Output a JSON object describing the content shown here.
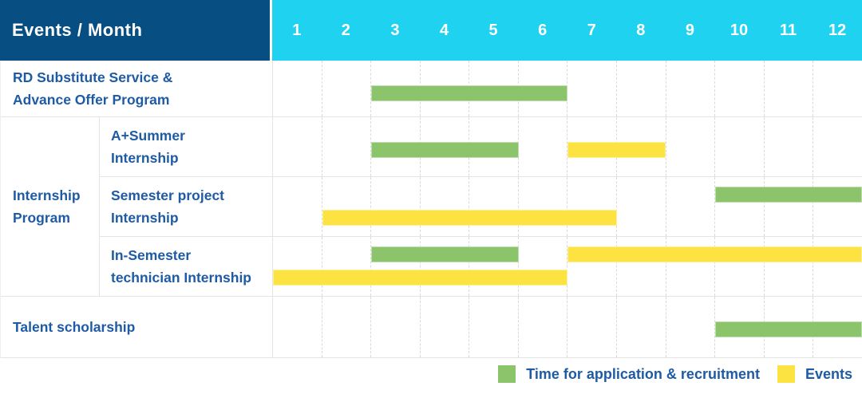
{
  "title_cell": "Events / Month",
  "months": [
    "1",
    "2",
    "3",
    "4",
    "5",
    "6",
    "7",
    "8",
    "9",
    "10",
    "11",
    "12"
  ],
  "labels": {
    "rd": [
      "RD Substitute Service &",
      "Advance Offer Program"
    ],
    "group": [
      "Internship",
      "Program"
    ],
    "a_summer": [
      "A+Summer",
      "Internship"
    ],
    "semester_project": [
      "Semester project",
      "Internship"
    ],
    "in_semester": [
      "In-Semester",
      "technician Internship"
    ],
    "talent": [
      "Talent scholarship"
    ]
  },
  "legend": {
    "application": "Time for application & recruitment",
    "events": "Events"
  },
  "colors": {
    "header_bg": "#074e82",
    "month_bg": "#1ed2f0",
    "green": "#8bc46b",
    "yellow": "#fde342",
    "label_text": "#1e5ba4"
  },
  "chart_data": {
    "type": "gantt",
    "title": "Events / Month",
    "x_axis": {
      "label": "Month",
      "ticks": [
        1,
        2,
        3,
        4,
        5,
        6,
        7,
        8,
        9,
        10,
        11,
        12
      ],
      "range": [
        1,
        12
      ],
      "grid": "dashed-vertical"
    },
    "legend_entries": [
      {
        "name": "Time for application & recruitment",
        "color": "#8bc46b"
      },
      {
        "name": "Events",
        "color": "#fde342"
      }
    ],
    "legend_position": "bottom-right",
    "rows": [
      {
        "label": "RD Substitute Service & Advance Offer Program",
        "group": null,
        "bars": [
          {
            "series": "Time for application & recruitment",
            "color": "#8bc46b",
            "start_month": 3,
            "end_month": 6,
            "band": "single"
          }
        ]
      },
      {
        "label": "A+Summer Internship",
        "group": "Internship Program",
        "bars": [
          {
            "series": "Time for application & recruitment",
            "color": "#8bc46b",
            "start_month": 3,
            "end_month": 5,
            "band": "single"
          },
          {
            "series": "Events",
            "color": "#fde342",
            "start_month": 7,
            "end_month": 8,
            "band": "single"
          }
        ]
      },
      {
        "label": "Semester project Internship",
        "group": "Internship Program",
        "bars": [
          {
            "series": "Time for application & recruitment",
            "color": "#8bc46b",
            "start_month": 10,
            "end_month": 12,
            "band": "top"
          },
          {
            "series": "Events",
            "color": "#fde342",
            "start_month": 2,
            "end_month": 7,
            "band": "bottom"
          }
        ]
      },
      {
        "label": "In-Semester technician Internship",
        "group": "Internship Program",
        "bars": [
          {
            "series": "Time for application & recruitment",
            "color": "#8bc46b",
            "start_month": 3,
            "end_month": 5,
            "band": "top"
          },
          {
            "series": "Events",
            "color": "#fde342",
            "start_month": 7,
            "end_month": 12,
            "band": "top"
          },
          {
            "series": "Events",
            "color": "#fde342",
            "start_month": 1,
            "end_month": 6,
            "band": "bottom"
          }
        ]
      },
      {
        "label": "Talent scholarship",
        "group": null,
        "bars": [
          {
            "series": "Time for application & recruitment",
            "color": "#8bc46b",
            "start_month": 10,
            "end_month": 12,
            "band": "single"
          }
        ]
      }
    ]
  }
}
